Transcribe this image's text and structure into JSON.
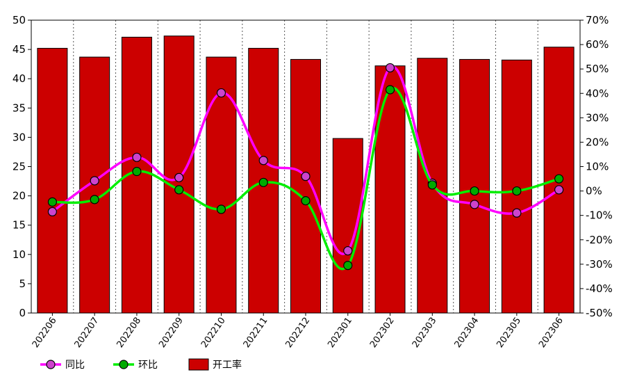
{
  "chart_data": {
    "type": "bar",
    "categories": [
      "202206",
      "202207",
      "202208",
      "202209",
      "202210",
      "202211",
      "202212",
      "202301",
      "202302",
      "202303",
      "202304",
      "202305",
      "202306"
    ],
    "left_axis": {
      "ylim": [
        0,
        50
      ],
      "ticks": [
        0,
        5,
        10,
        15,
        20,
        25,
        30,
        35,
        40,
        45,
        50
      ]
    },
    "right_axis": {
      "ylim": [
        -50,
        70
      ],
      "ticks": [
        "-50%",
        "-40%",
        "-30%",
        "-20%",
        "-10%",
        "0%",
        "10%",
        "20%",
        "30%",
        "40%",
        "50%",
        "60%",
        "70%"
      ]
    },
    "series": [
      {
        "name": "开工率",
        "kind": "bar",
        "axis": "left",
        "color": "#cc0000",
        "values": [
          45.2,
          43.7,
          47.1,
          47.3,
          43.7,
          45.2,
          43.3,
          29.8,
          42.2,
          43.5,
          43.3,
          43.2,
          45.4
        ]
      },
      {
        "name": "同比",
        "kind": "line",
        "axis": "right",
        "color": "#ff00ff",
        "marker": "#cc44cc",
        "values": [
          -8.5,
          4.2,
          13.8,
          5.5,
          40.2,
          12.5,
          6.0,
          -24.5,
          50.5,
          3.2,
          -5.5,
          -9.0,
          0.5
        ]
      },
      {
        "name": "环比",
        "kind": "line",
        "axis": "right",
        "color": "#00ee00",
        "marker": "#00aa00",
        "values": [
          -4.5,
          -3.5,
          8.0,
          0.5,
          -7.5,
          3.5,
          -4.0,
          -30.5,
          41.5,
          2.5,
          0.0,
          0.0,
          5.0
        ]
      }
    ],
    "grid": "vertical-dashed",
    "legend": "bottom-left"
  }
}
